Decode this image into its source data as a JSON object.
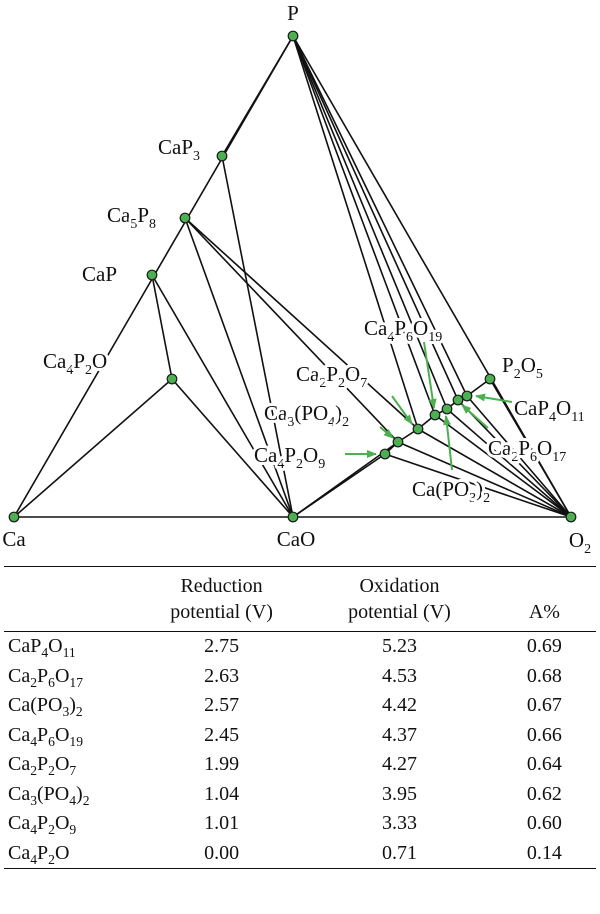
{
  "colors": {
    "node": "#4caf50",
    "arrow": "#4caf50",
    "line": "#111111"
  },
  "diagram": {
    "nodes": {
      "P": [
        "P"
      ],
      "Ca": [
        "Ca"
      ],
      "CaO": [
        "CaO"
      ],
      "O2": [
        "O",
        "2"
      ],
      "CaP3": [
        "CaP",
        "3"
      ],
      "Ca5P8": [
        "Ca",
        "5",
        "P",
        "8"
      ],
      "CaP": [
        "CaP"
      ],
      "Ca4P2O": [
        "Ca",
        "4",
        "P",
        "2",
        "O"
      ],
      "P2O5": [
        "P",
        "2",
        "O",
        "5"
      ],
      "Ca4P6O19": [
        "Ca",
        "4",
        "P",
        "6",
        "O",
        "19"
      ],
      "Ca2P2O7": [
        "Ca",
        "2",
        "P",
        "2",
        "O",
        "7"
      ],
      "Ca3PO42": [
        "Ca",
        "3",
        "(PO",
        "4",
        ")",
        "2"
      ],
      "Ca4P2O9": [
        "Ca",
        "4",
        "P",
        "2",
        "O",
        "9"
      ],
      "CaP4O11": [
        "CaP",
        "4",
        "O",
        "11"
      ],
      "Ca2P6O17": [
        "Ca",
        "2",
        "P",
        "6",
        "O",
        "17"
      ],
      "CaPO32": [
        "Ca(PO",
        "3",
        ")",
        "2"
      ]
    }
  },
  "table": {
    "headers": [
      {
        "line1": "",
        "line2": ""
      },
      {
        "line1": "Reduction",
        "line2": "potential (V)"
      },
      {
        "line1": "Oxidation",
        "line2": "potential (V)"
      },
      {
        "line1": "",
        "line2": "A%"
      }
    ],
    "rows": [
      {
        "name": [
          "CaP",
          "4",
          "O",
          "11"
        ],
        "reduction": "2.75",
        "oxidation": "5.23",
        "a": "0.69"
      },
      {
        "name": [
          "Ca",
          "2",
          "P",
          "6",
          "O",
          "17"
        ],
        "reduction": "2.63",
        "oxidation": "4.53",
        "a": "0.68"
      },
      {
        "name": [
          "Ca(PO",
          "3",
          ")",
          "2"
        ],
        "reduction": "2.57",
        "oxidation": "4.42",
        "a": "0.67"
      },
      {
        "name": [
          "Ca",
          "4",
          "P",
          "6",
          "O",
          "19"
        ],
        "reduction": "2.45",
        "oxidation": "4.37",
        "a": "0.66"
      },
      {
        "name": [
          "Ca",
          "2",
          "P",
          "2",
          "O",
          "7"
        ],
        "reduction": "1.99",
        "oxidation": "4.27",
        "a": "0.64"
      },
      {
        "name": [
          "Ca",
          "3",
          "(PO",
          "4",
          ")",
          "2"
        ],
        "reduction": "1.04",
        "oxidation": "3.95",
        "a": "0.62"
      },
      {
        "name": [
          "Ca",
          "4",
          "P",
          "2",
          "O",
          "9"
        ],
        "reduction": "1.01",
        "oxidation": "3.33",
        "a": "0.60"
      },
      {
        "name": [
          "Ca",
          "4",
          "P",
          "2",
          "O"
        ],
        "reduction": "0.00",
        "oxidation": "0.71",
        "a": "0.14"
      }
    ]
  }
}
